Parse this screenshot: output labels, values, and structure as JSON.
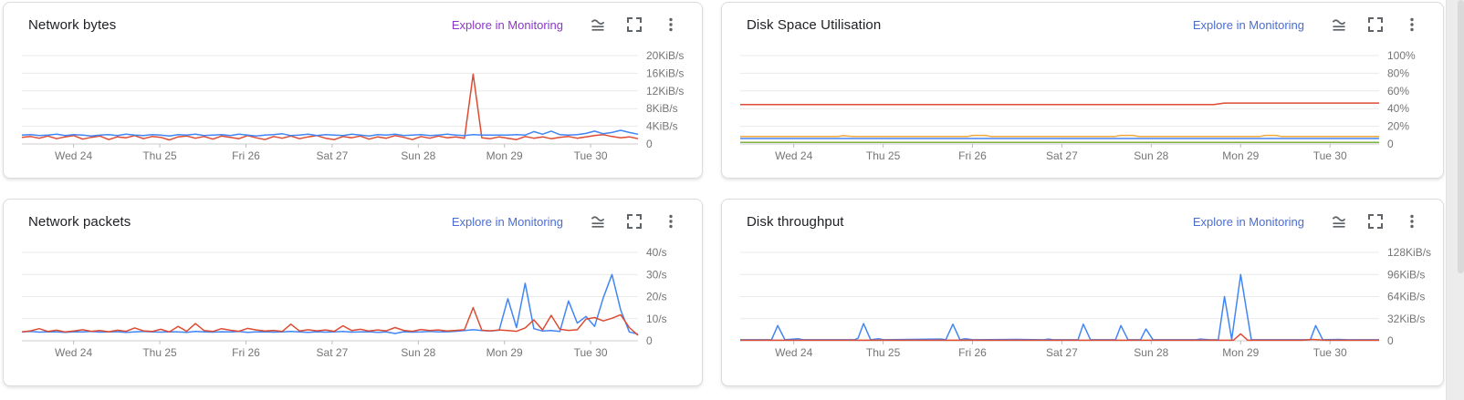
{
  "page": {
    "background": "#ffffff",
    "right_strip_color": "#ececec"
  },
  "cards": [
    {
      "title": "Network bytes",
      "link": {
        "label": "Explore in Monitoring",
        "color": "#8d36c9"
      }
    },
    {
      "title": "Disk Space Utilisation",
      "link": {
        "label": "Explore in Monitoring",
        "color": "#4a6dd3"
      }
    },
    {
      "title": "Network packets",
      "link": {
        "label": "Explore in Monitoring",
        "color": "#4a6dd3"
      }
    },
    {
      "title": "Disk throughput",
      "link": {
        "label": "Explore in Monitoring",
        "color": "#4a6dd3"
      }
    }
  ],
  "icons": {
    "chart_type": "area-chart-icon",
    "fullscreen": "fullscreen-icon",
    "menu": "overflow-menu-icon",
    "color": "#5f6368"
  },
  "chart_data": [
    {
      "type": "line",
      "title": "Network bytes",
      "x_labels": [
        "Wed 24",
        "Thu 25",
        "Fri 26",
        "Sat 27",
        "Sun 28",
        "Mon 29",
        "Tue 30"
      ],
      "x_start": -0.1,
      "x_end": 7.05,
      "y_max": 20,
      "ylim": [
        0,
        20
      ],
      "y_ticks": [
        {
          "label": "20KiB/s",
          "value": 20
        },
        {
          "label": "16KiB/s",
          "value": 16
        },
        {
          "label": "12KiB/s",
          "value": 12
        },
        {
          "label": "8KiB/s",
          "value": 8
        },
        {
          "label": "4KiB/s",
          "value": 4
        },
        {
          "label": "0",
          "value": 0
        }
      ],
      "series": [
        {
          "name": "orange-series",
          "color": "#dd4b32",
          "y": [
            1.5,
            1.7,
            1.3,
            1.8,
            1.2,
            1.6,
            1.9,
            1.1,
            1.5,
            1.8,
            1.0,
            1.6,
            1.4,
            1.9,
            1.2,
            1.7,
            1.5,
            0.9,
            1.6,
            1.8,
            1.3,
            1.7,
            1.1,
            1.8,
            1.5,
            1.2,
            1.9,
            1.4,
            1.0,
            1.7,
            1.3,
            1.8,
            1.2,
            1.6,
            1.9,
            1.3,
            1.0,
            1.7,
            1.4,
            1.8,
            1.1,
            1.6,
            1.3,
            1.9,
            1.5,
            1.0,
            1.7,
            1.3,
            1.8,
            1.4,
            1.6,
            1.3,
            15.8,
            1.4,
            1.2,
            1.6,
            1.3,
            1.0,
            1.7,
            1.3,
            1.6,
            1.2,
            1.5,
            1.7,
            1.3,
            1.6,
            1.9,
            2.1,
            1.7,
            1.4,
            1.6,
            1.2
          ]
        },
        {
          "name": "blue-series",
          "color": "#4285f4",
          "y": [
            2.0,
            2.1,
            1.9,
            2.0,
            2.2,
            1.9,
            2.1,
            2.0,
            1.8,
            2.0,
            2.1,
            1.9,
            2.2,
            2.0,
            1.9,
            2.1,
            2.0,
            1.8,
            2.1,
            2.0,
            2.2,
            1.9,
            2.0,
            2.1,
            1.9,
            2.2,
            2.0,
            1.8,
            2.0,
            2.1,
            2.3,
            1.9,
            2.0,
            2.2,
            1.9,
            2.1,
            2.0,
            1.9,
            2.2,
            2.0,
            1.8,
            2.1,
            2.0,
            2.2,
            1.9,
            2.0,
            2.1,
            1.9,
            2.0,
            2.2,
            2.0,
            1.9,
            2.1,
            2.0,
            2.0,
            2.0,
            2.0,
            2.1,
            2.0,
            2.8,
            2.2,
            2.9,
            2.1,
            2.0,
            2.1,
            2.4,
            2.9,
            2.3,
            2.6,
            3.1,
            2.6,
            2.2
          ]
        }
      ]
    },
    {
      "type": "line",
      "title": "Disk Space Utilisation",
      "x_labels": [
        "Wed 24",
        "Thu 25",
        "Fri 26",
        "Sat 27",
        "Sun 28",
        "Mon 29",
        "Tue 30"
      ],
      "x_start": -0.1,
      "x_end": 7.05,
      "y_max": 100,
      "ylim": [
        0,
        100
      ],
      "y_ticks": [
        {
          "label": "100%",
          "value": 100
        },
        {
          "label": "80%",
          "value": 80
        },
        {
          "label": "60%",
          "value": 60
        },
        {
          "label": "40%",
          "value": 40
        },
        {
          "label": "20%",
          "value": 20
        },
        {
          "label": "0",
          "value": 0
        }
      ],
      "series": [
        {
          "name": "green-series",
          "color": "#7cb342",
          "points": [
            [
              -0.1,
              1.8
            ],
            [
              7.05,
              1.8
            ]
          ]
        },
        {
          "name": "blue-series",
          "color": "#4285f4",
          "points": [
            [
              -0.1,
              6.2
            ],
            [
              7.05,
              6.2
            ]
          ]
        },
        {
          "name": "yellow-series",
          "color": "#f0a73e",
          "points": [
            [
              -0.1,
              8.6
            ],
            [
              1.0,
              8.6
            ],
            [
              1.05,
              9.4
            ],
            [
              1.15,
              8.6
            ],
            [
              2.45,
              8.6
            ],
            [
              2.5,
              9.7
            ],
            [
              2.65,
              9.7
            ],
            [
              2.7,
              8.6
            ],
            [
              4.1,
              8.6
            ],
            [
              4.15,
              9.7
            ],
            [
              4.3,
              9.7
            ],
            [
              4.35,
              8.6
            ],
            [
              5.72,
              8.6
            ],
            [
              5.77,
              9.7
            ],
            [
              5.9,
              9.7
            ],
            [
              5.95,
              8.6
            ],
            [
              7.05,
              8.6
            ]
          ]
        },
        {
          "name": "red-series",
          "color": "#dd4b32",
          "points": [
            [
              -0.1,
              44.5
            ],
            [
              5.2,
              44.5
            ],
            [
              5.32,
              46.3
            ],
            [
              7.05,
              46.3
            ]
          ]
        }
      ]
    },
    {
      "type": "line",
      "title": "Network packets",
      "x_labels": [
        "Wed 24",
        "Thu 25",
        "Fri 26",
        "Sat 27",
        "Sun 28",
        "Mon 29",
        "Tue 30"
      ],
      "x_start": -0.1,
      "x_end": 7.05,
      "y_max": 40,
      "ylim": [
        0,
        40
      ],
      "y_ticks": [
        {
          "label": "40/s",
          "value": 40
        },
        {
          "label": "30/s",
          "value": 30
        },
        {
          "label": "20/s",
          "value": 20
        },
        {
          "label": "10/s",
          "value": 10
        },
        {
          "label": "0",
          "value": 0
        }
      ],
      "series": [
        {
          "name": "blue-series",
          "color": "#4285f4",
          "y": [
            4.0,
            4.2,
            3.9,
            4.1,
            4.0,
            3.8,
            4.1,
            4.0,
            4.2,
            3.9,
            4.0,
            4.1,
            3.8,
            4.0,
            4.2,
            4.0,
            3.9,
            4.1,
            4.0,
            3.8,
            4.2,
            4.0,
            3.9,
            4.1,
            4.0,
            4.2,
            3.8,
            4.0,
            4.1,
            3.9,
            4.0,
            4.2,
            4.0,
            3.8,
            4.1,
            3.9,
            4.0,
            4.2,
            3.9,
            4.0,
            4.1,
            3.8,
            4.0,
            3.3,
            4.1,
            3.9,
            4.0,
            4.2,
            4.0,
            4.1,
            4.3,
            4.6,
            5.0,
            4.6,
            4.4,
            4.8,
            19.0,
            6.0,
            26.0,
            5.5,
            4.4,
            4.6,
            4.2,
            18.0,
            8.0,
            11.0,
            6.5,
            19.5,
            30.0,
            14.0,
            4.0,
            3.0
          ]
        },
        {
          "name": "orange-series",
          "color": "#dd4b32",
          "y": [
            4.0,
            4.5,
            5.5,
            4.2,
            4.8,
            4.0,
            4.4,
            5.0,
            4.3,
            4.6,
            4.1,
            4.8,
            4.3,
            5.8,
            4.5,
            4.2,
            5.2,
            4.0,
            6.5,
            4.3,
            7.8,
            4.6,
            4.2,
            5.5,
            4.8,
            4.3,
            5.6,
            4.9,
            4.4,
            4.7,
            4.2,
            7.5,
            4.4,
            5.0,
            4.5,
            4.9,
            4.3,
            6.8,
            4.6,
            5.2,
            4.4,
            4.9,
            4.5,
            6.0,
            4.7,
            4.3,
            5.1,
            4.6,
            4.9,
            4.4,
            4.7,
            5.0,
            15.0,
            4.8,
            4.5,
            4.9,
            4.6,
            4.3,
            5.8,
            9.5,
            4.9,
            11.5,
            5.2,
            4.7,
            5.0,
            9.8,
            10.5,
            9.0,
            10.2,
            11.8,
            6.0,
            2.5
          ]
        }
      ]
    },
    {
      "type": "line",
      "title": "Disk throughput",
      "x_labels": [
        "Wed 24",
        "Thu 25",
        "Fri 26",
        "Sat 27",
        "Sun 28",
        "Mon 29",
        "Tue 30"
      ],
      "x_start": -0.1,
      "x_end": 7.05,
      "y_max": 128,
      "ylim": [
        0,
        128
      ],
      "y_ticks": [
        {
          "label": "128KiB/s",
          "value": 128
        },
        {
          "label": "96KiB/s",
          "value": 96
        },
        {
          "label": "64KiB/s",
          "value": 64
        },
        {
          "label": "32KiB/s",
          "value": 32
        },
        {
          "label": "0",
          "value": 0
        }
      ],
      "series": [
        {
          "name": "blue-series",
          "color": "#4285f4",
          "points": [
            [
              -0.1,
              1.5
            ],
            [
              0.25,
              1.5
            ],
            [
              0.32,
              22
            ],
            [
              0.4,
              1.5
            ],
            [
              0.55,
              3
            ],
            [
              0.6,
              1.5
            ],
            [
              1.18,
              1.5
            ],
            [
              1.22,
              4
            ],
            [
              1.28,
              25
            ],
            [
              1.36,
              1.5
            ],
            [
              1.45,
              3
            ],
            [
              1.5,
              1.5
            ],
            [
              2.15,
              2.5
            ],
            [
              2.2,
              1.5
            ],
            [
              2.28,
              24
            ],
            [
              2.36,
              1.5
            ],
            [
              2.42,
              3
            ],
            [
              2.5,
              1.5
            ],
            [
              3.0,
              2
            ],
            [
              3.3,
              1.5
            ],
            [
              3.35,
              2.5
            ],
            [
              3.4,
              1.5
            ],
            [
              3.68,
              1.5
            ],
            [
              3.74,
              24
            ],
            [
              3.82,
              1.5
            ],
            [
              4.1,
              1.5
            ],
            [
              4.16,
              22
            ],
            [
              4.24,
              1.5
            ],
            [
              4.38,
              1.5
            ],
            [
              4.44,
              17
            ],
            [
              4.52,
              1.5
            ],
            [
              5.0,
              1.5
            ],
            [
              5.05,
              2.5
            ],
            [
              5.15,
              1.5
            ],
            [
              5.25,
              1.5
            ],
            [
              5.32,
              64
            ],
            [
              5.4,
              2
            ],
            [
              5.5,
              96
            ],
            [
              5.62,
              1.5
            ],
            [
              6.28,
              1.5
            ],
            [
              6.34,
              22
            ],
            [
              6.42,
              1.5
            ],
            [
              6.6,
              2
            ],
            [
              6.7,
              1.5
            ],
            [
              7.05,
              1.5
            ]
          ]
        },
        {
          "name": "orange-series",
          "color": "#dd4b32",
          "points": [
            [
              -0.1,
              0.8
            ],
            [
              5.42,
              0.8
            ],
            [
              5.5,
              10
            ],
            [
              5.58,
              0.8
            ],
            [
              6.2,
              0.8
            ],
            [
              6.3,
              2
            ],
            [
              6.45,
              0.8
            ],
            [
              7.05,
              0.8
            ]
          ]
        }
      ]
    }
  ]
}
